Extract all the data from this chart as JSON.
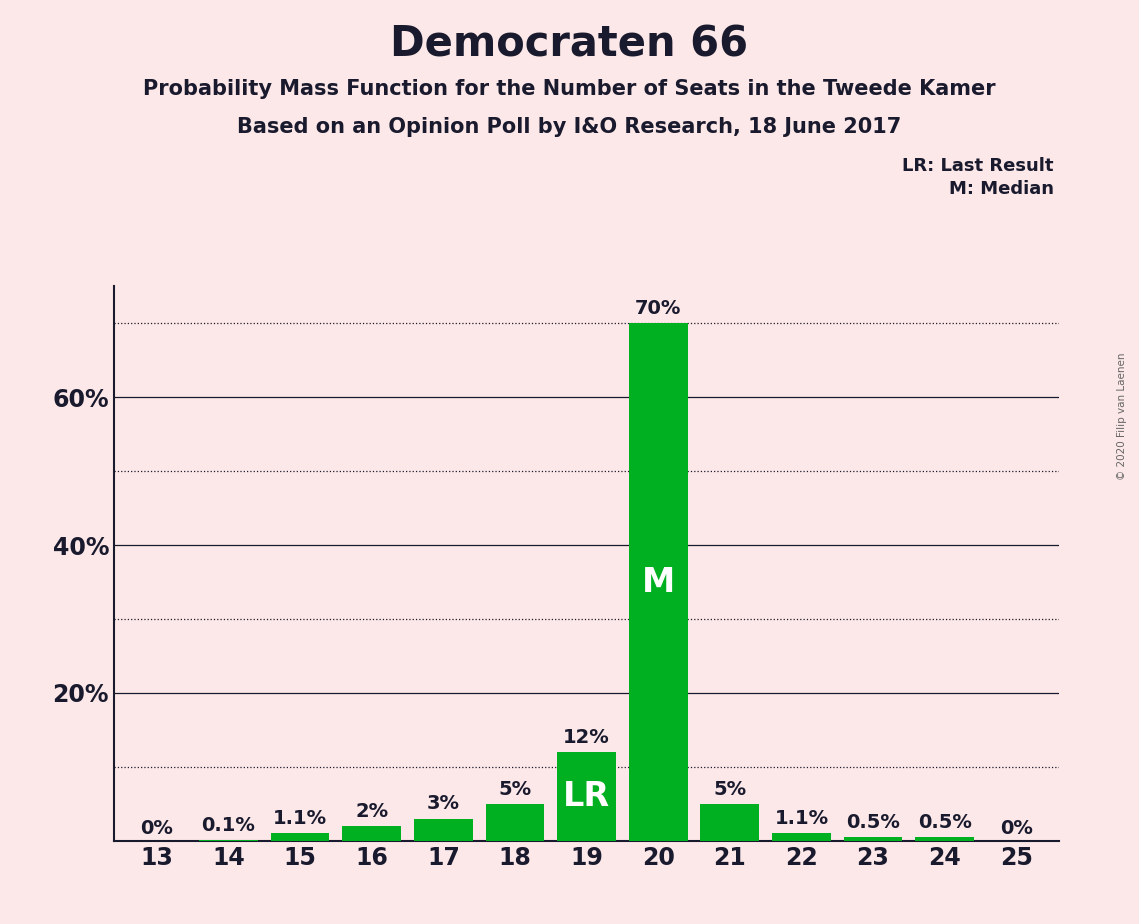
{
  "title": "Democraten 66",
  "subtitle1": "Probability Mass Function for the Number of Seats in the Tweede Kamer",
  "subtitle2": "Based on an Opinion Poll by I&O Research, 18 June 2017",
  "copyright": "© 2020 Filip van Laenen",
  "legend1": "LR: Last Result",
  "legend2": "M: Median",
  "seats": [
    13,
    14,
    15,
    16,
    17,
    18,
    19,
    20,
    21,
    22,
    23,
    24,
    25
  ],
  "probabilities": [
    0.0,
    0.1,
    1.1,
    2.0,
    3.0,
    5.0,
    12.0,
    70.0,
    5.0,
    1.1,
    0.5,
    0.5,
    0.0
  ],
  "labels": [
    "0%",
    "0.1%",
    "1.1%",
    "2%",
    "3%",
    "5%",
    "12%",
    "70%",
    "5%",
    "1.1%",
    "0.5%",
    "0.5%",
    "0%"
  ],
  "bar_color": "#00b020",
  "lr_seat": 19,
  "median_seat": 20,
  "background_color": "#fce8e8",
  "ylim": [
    0,
    75
  ],
  "solid_gridlines": [
    20,
    40,
    60
  ],
  "dotted_gridlines": [
    10,
    30,
    50,
    70
  ],
  "ytick_positions": [
    20,
    40,
    60
  ],
  "ytick_labels": [
    "20%",
    "40%",
    "60%"
  ],
  "title_fontsize": 30,
  "subtitle_fontsize": 15,
  "label_fontsize": 13,
  "tick_fontsize": 17,
  "bar_label_fontsize": 14,
  "inbar_fontsize": 24
}
